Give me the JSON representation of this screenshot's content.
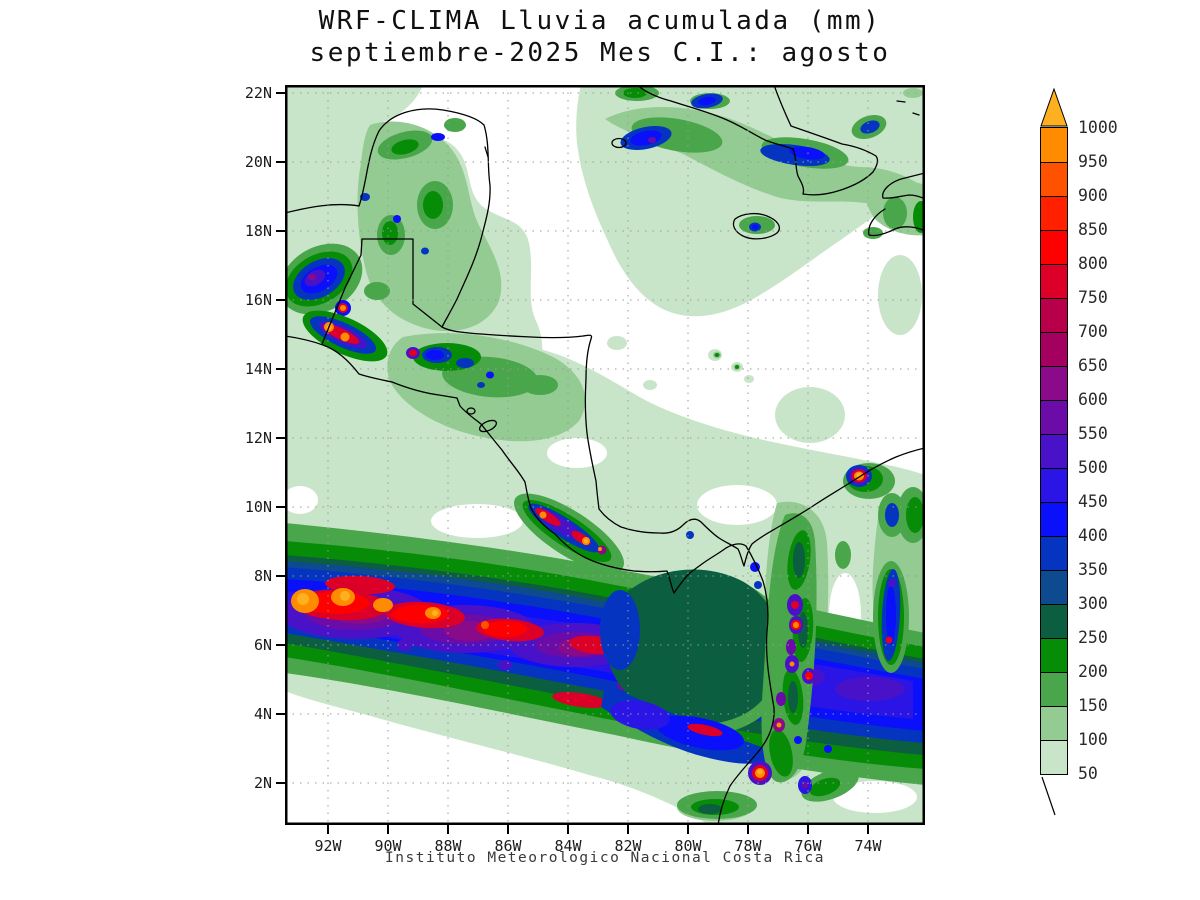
{
  "title": {
    "line1": "WRF-CLIMA Lluvia acumulada (mm)",
    "line2": "septiembre-2025 Mes C.I.: agosto"
  },
  "caption": "Instituto Meteorologico Nacional Costa Rica",
  "axes": {
    "lat": [
      "22N",
      "20N",
      "18N",
      "16N",
      "14N",
      "12N",
      "10N",
      "8N",
      "6N",
      "4N",
      "2N"
    ],
    "lon": [
      "92W",
      "90W",
      "88W",
      "86W",
      "84W",
      "82W",
      "80W",
      "78W",
      "76W",
      "74W"
    ]
  },
  "colorbar": {
    "unit": "mm",
    "labels_top_to_bottom": [
      "1000",
      "950",
      "900",
      "850",
      "800",
      "750",
      "700",
      "650",
      "600",
      "550",
      "500",
      "450",
      "400",
      "350",
      "300",
      "250",
      "200",
      "150",
      "100",
      "50"
    ],
    "arrow_color": "#FFB020",
    "palette": {
      "50": "#C9E5C9",
      "100": "#93CB93",
      "150": "#4AA64A",
      "200": "#068C06",
      "250": "#0B5E3F",
      "300": "#0D4A90",
      "350": "#0535C0",
      "400": "#0A10FA",
      "450": "#2A14E6",
      "500": "#4A12C8",
      "550": "#6B0BA8",
      "600": "#8A0B8A",
      "650": "#A4005F",
      "700": "#B8004A",
      "750": "#DC0028",
      "800": "#FF0000",
      "850": "#FF2000",
      "900": "#FF5200",
      "950": "#FF8C00",
      "1000": "#FFB020"
    },
    "grid_color": "#9a9a9a",
    "coast_color": "#000000"
  }
}
